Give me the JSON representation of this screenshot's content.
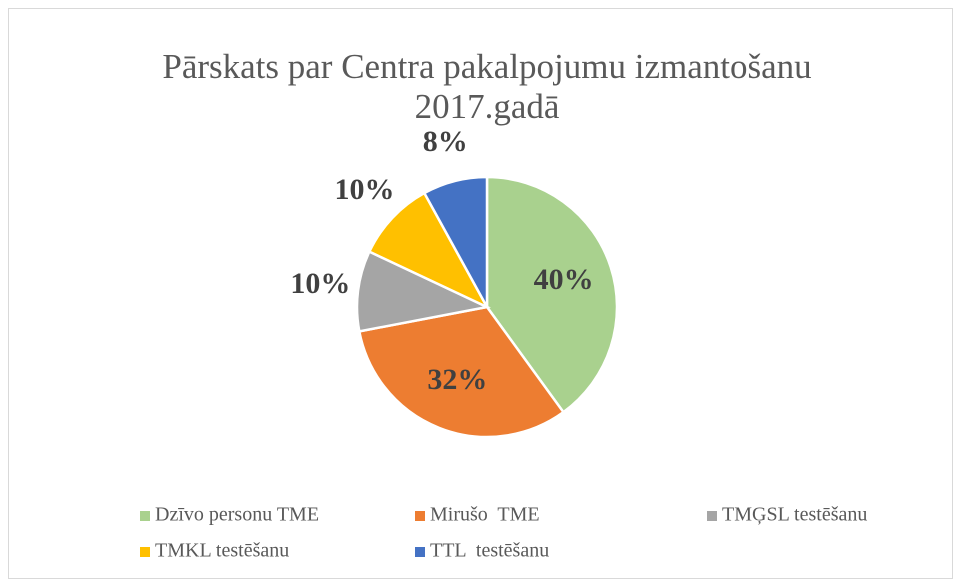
{
  "chart_data": {
    "type": "pie",
    "title": [
      "Pārskats par Centra pakalpojumu izmantošanu",
      "2017.gadā"
    ],
    "categories": [
      "Dzīvo personu TME",
      "Mirušo  TME",
      "TMĢSL testēšanu",
      "TMKL testēšanu",
      "TTL  testēšanu"
    ],
    "values": [
      40,
      32,
      10,
      10,
      8
    ],
    "value_labels": [
      "40%",
      "32%",
      "10%",
      "10%",
      "8%"
    ],
    "colors": [
      "#a9d18e",
      "#ed7d31",
      "#a5a5a5",
      "#ffc000",
      "#4472c4"
    ],
    "legend": "bottom"
  }
}
